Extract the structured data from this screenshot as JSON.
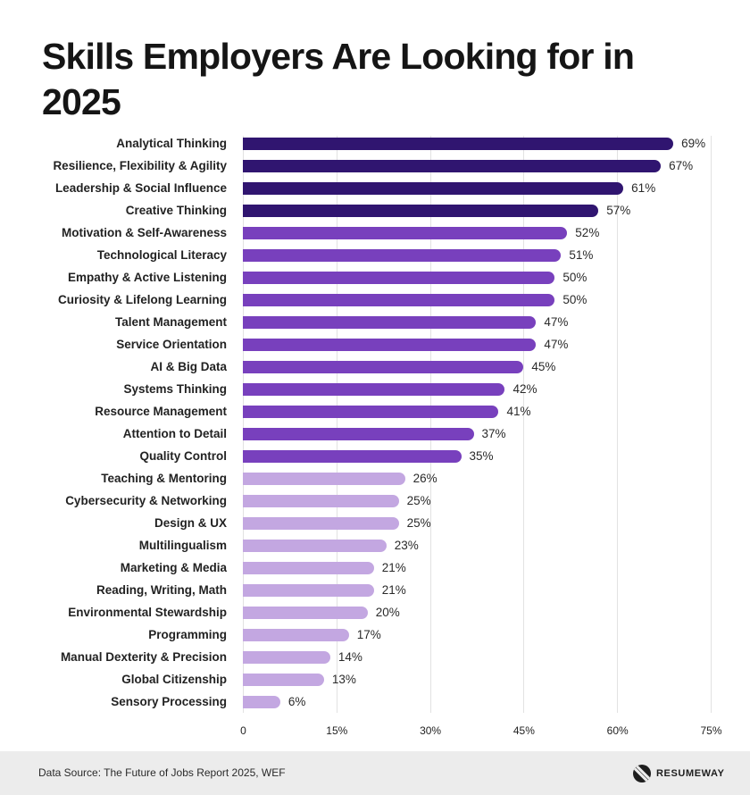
{
  "title": "Skills Employers Are Looking for in 2025",
  "footer": {
    "source": "Data Source: The Future of Jobs Report 2025, WEF",
    "brand": "RESUMEWAY"
  },
  "colors": {
    "tier1": "#301570",
    "tier2": "#7840bd",
    "tier3": "#c3a7e1",
    "grid": "#e2e2e2",
    "footer_bg": "#ececec"
  },
  "chart_data": {
    "type": "bar",
    "orientation": "horizontal",
    "title": "Skills Employers Are Looking for in 2025",
    "xlabel": "",
    "ylabel": "",
    "xlim": [
      0,
      75
    ],
    "x_ticks": [
      "0",
      "15%",
      "30%",
      "45%",
      "60%",
      "75%"
    ],
    "grid": true,
    "legend": null,
    "categories": [
      "Analytical Thinking",
      "Resilience, Flexibility & Agility",
      "Leadership & Social Influence",
      "Creative Thinking",
      "Motivation & Self-Awareness",
      "Technological Literacy",
      "Empathy & Active Listening",
      "Curiosity & Lifelong Learning",
      "Talent Management",
      "Service Orientation",
      "AI & Big Data",
      "Systems Thinking",
      "Resource Management",
      "Attention to Detail",
      "Quality Control",
      "Teaching & Mentoring",
      "Cybersecurity & Networking",
      "Design & UX",
      "Multilingualism",
      "Marketing & Media",
      "Reading, Writing, Math",
      "Environmental Stewardship",
      "Programming",
      "Manual Dexterity & Precision",
      "Global Citizenship",
      "Sensory Processing"
    ],
    "values": [
      69,
      67,
      61,
      57,
      52,
      51,
      50,
      50,
      47,
      47,
      45,
      42,
      41,
      37,
      35,
      26,
      25,
      25,
      23,
      21,
      21,
      20,
      17,
      14,
      13,
      6
    ],
    "value_labels": [
      "69%",
      "67%",
      "61%",
      "57%",
      "52%",
      "51%",
      "50%",
      "50%",
      "47%",
      "47%",
      "45%",
      "42%",
      "41%",
      "37%",
      "35%",
      "26%",
      "25%",
      "25%",
      "23%",
      "21%",
      "21%",
      "20%",
      "17%",
      "14%",
      "13%",
      "6%"
    ],
    "tiers": [
      1,
      1,
      1,
      1,
      2,
      2,
      2,
      2,
      2,
      2,
      2,
      2,
      2,
      2,
      2,
      3,
      3,
      3,
      3,
      3,
      3,
      3,
      3,
      3,
      3,
      3
    ],
    "unit": "%"
  }
}
